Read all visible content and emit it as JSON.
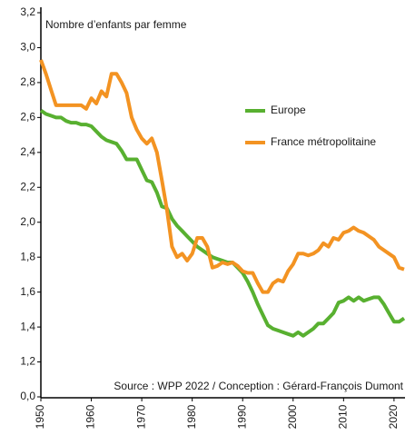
{
  "chart_data": {
    "type": "line",
    "title": "Nombre d’enfants par femme",
    "annotation": "Source : WPP 2022 / Conception : Gérard-François Dumont",
    "x": [
      1950,
      1951,
      1952,
      1953,
      1954,
      1955,
      1956,
      1957,
      1958,
      1959,
      1960,
      1961,
      1962,
      1963,
      1964,
      1965,
      1966,
      1967,
      1968,
      1969,
      1970,
      1971,
      1972,
      1973,
      1974,
      1975,
      1976,
      1977,
      1978,
      1979,
      1980,
      1981,
      1982,
      1983,
      1984,
      1985,
      1986,
      1987,
      1988,
      1989,
      1990,
      1991,
      1992,
      1993,
      1994,
      1995,
      1996,
      1997,
      1998,
      1999,
      2000,
      2001,
      2002,
      2003,
      2004,
      2005,
      2006,
      2007,
      2008,
      2009,
      2010,
      2011,
      2012,
      2013,
      2014,
      2015,
      2016,
      2017,
      2018,
      2019,
      2020,
      2021,
      2022
    ],
    "series": [
      {
        "name": "Europe",
        "color": "#58b030",
        "values": [
          2.64,
          2.62,
          2.61,
          2.6,
          2.6,
          2.58,
          2.57,
          2.57,
          2.56,
          2.56,
          2.55,
          2.52,
          2.49,
          2.47,
          2.46,
          2.45,
          2.41,
          2.36,
          2.36,
          2.36,
          2.3,
          2.24,
          2.23,
          2.17,
          2.09,
          2.08,
          2.02,
          1.98,
          1.95,
          1.92,
          1.89,
          1.86,
          1.84,
          1.82,
          1.8,
          1.79,
          1.78,
          1.77,
          1.77,
          1.74,
          1.71,
          1.66,
          1.6,
          1.53,
          1.47,
          1.41,
          1.39,
          1.38,
          1.37,
          1.36,
          1.35,
          1.37,
          1.35,
          1.37,
          1.39,
          1.42,
          1.42,
          1.45,
          1.48,
          1.54,
          1.55,
          1.57,
          1.55,
          1.57,
          1.55,
          1.56,
          1.57,
          1.57,
          1.53,
          1.48,
          1.43,
          1.43,
          1.45
        ]
      },
      {
        "name": "France métropolitaine",
        "color": "#f39322",
        "values": [
          2.93,
          2.85,
          2.76,
          2.67,
          2.67,
          2.67,
          2.67,
          2.67,
          2.67,
          2.65,
          2.71,
          2.68,
          2.75,
          2.72,
          2.85,
          2.85,
          2.8,
          2.74,
          2.6,
          2.53,
          2.48,
          2.45,
          2.48,
          2.4,
          2.24,
          2.07,
          1.86,
          1.8,
          1.82,
          1.78,
          1.82,
          1.91,
          1.91,
          1.86,
          1.74,
          1.75,
          1.77,
          1.76,
          1.77,
          1.75,
          1.72,
          1.71,
          1.71,
          1.65,
          1.6,
          1.6,
          1.65,
          1.67,
          1.66,
          1.72,
          1.76,
          1.82,
          1.82,
          1.81,
          1.82,
          1.84,
          1.88,
          1.86,
          1.91,
          1.9,
          1.94,
          1.95,
          1.97,
          1.95,
          1.94,
          1.92,
          1.9,
          1.86,
          1.84,
          1.82,
          1.8,
          1.74,
          1.73
        ]
      }
    ],
    "xlim": [
      1950,
      2022
    ],
    "xticks": [
      1950,
      1960,
      1970,
      1980,
      1990,
      2000,
      2010,
      2020
    ],
    "ylim": [
      0,
      3.2
    ],
    "yticks": [
      {
        "value": 0,
        "label": "0,0"
      },
      {
        "value": 1.2,
        "label": "1,2"
      },
      {
        "value": 1.4,
        "label": "1,4"
      },
      {
        "value": 1.6,
        "label": "1,6"
      },
      {
        "value": 1.8,
        "label": "1,8"
      },
      {
        "value": 2.0,
        "label": "2,0"
      },
      {
        "value": 2.2,
        "label": "2,2"
      },
      {
        "value": 2.4,
        "label": "2,4"
      },
      {
        "value": 2.6,
        "label": "2,6"
      },
      {
        "value": 2.8,
        "label": "2,8"
      },
      {
        "value": 3.0,
        "label": "3,0"
      },
      {
        "value": 3.2,
        "label": "3,2"
      }
    ]
  }
}
